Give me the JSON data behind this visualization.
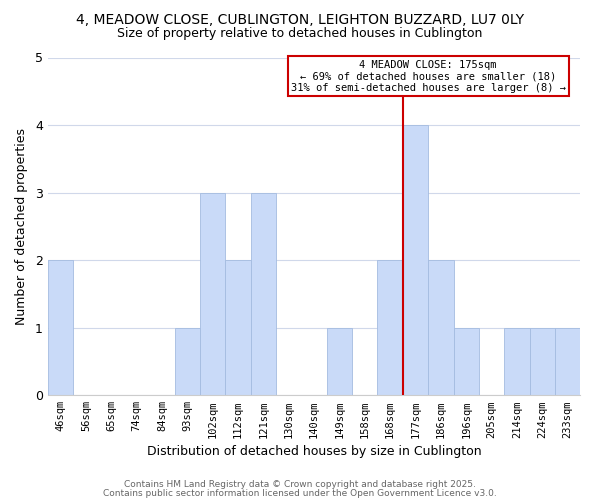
{
  "title": "4, MEADOW CLOSE, CUBLINGTON, LEIGHTON BUZZARD, LU7 0LY",
  "subtitle": "Size of property relative to detached houses in Cublington",
  "xlabel": "Distribution of detached houses by size in Cublington",
  "ylabel": "Number of detached properties",
  "categories": [
    "46sqm",
    "56sqm",
    "65sqm",
    "74sqm",
    "84sqm",
    "93sqm",
    "102sqm",
    "112sqm",
    "121sqm",
    "130sqm",
    "140sqm",
    "149sqm",
    "158sqm",
    "168sqm",
    "177sqm",
    "186sqm",
    "196sqm",
    "205sqm",
    "214sqm",
    "224sqm",
    "233sqm"
  ],
  "values": [
    2,
    0,
    0,
    0,
    0,
    1,
    3,
    2,
    3,
    0,
    0,
    1,
    0,
    2,
    4,
    2,
    1,
    0,
    1,
    1,
    1
  ],
  "bar_color": "#c9daf8",
  "bar_edge_color": "#a4bce0",
  "grid_color": "#d0d8ea",
  "background_color": "#ffffff",
  "plot_bg_color": "#ffffff",
  "vline_x": 13.5,
  "vline_color": "#cc0000",
  "annotation_title": "4 MEADOW CLOSE: 175sqm",
  "annotation_line1": "← 69% of detached houses are smaller (18)",
  "annotation_line2": "31% of semi-detached houses are larger (8) →",
  "annotation_box_edge": "#cc0000",
  "ylim": [
    0,
    5
  ],
  "yticks": [
    0,
    1,
    2,
    3,
    4,
    5
  ],
  "footer1": "Contains HM Land Registry data © Crown copyright and database right 2025.",
  "footer2": "Contains public sector information licensed under the Open Government Licence v3.0."
}
